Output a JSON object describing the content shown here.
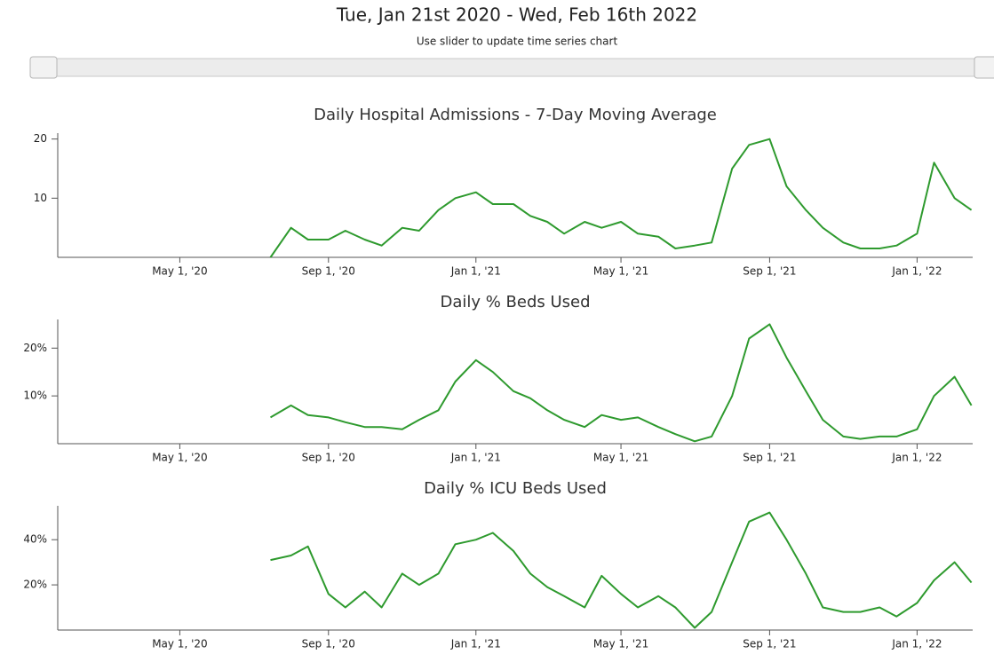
{
  "header": {
    "title": "Tue, Jan 21st 2020 - Wed, Feb 16th 2022",
    "subtitle": "Use slider to update time series chart"
  },
  "chart_data": [
    {
      "type": "line",
      "title": "Daily Hospital Admissions - 7-Day Moving Average",
      "color": "#2e9a2e",
      "x": [
        "2020-07-15",
        "2020-08-01",
        "2020-08-15",
        "2020-09-01",
        "2020-09-15",
        "2020-10-01",
        "2020-10-15",
        "2020-11-01",
        "2020-11-15",
        "2020-12-01",
        "2020-12-15",
        "2021-01-01",
        "2021-01-15",
        "2021-02-01",
        "2021-02-15",
        "2021-03-01",
        "2021-03-15",
        "2021-04-01",
        "2021-04-15",
        "2021-05-01",
        "2021-05-15",
        "2021-06-01",
        "2021-06-15",
        "2021-07-01",
        "2021-07-15",
        "2021-08-01",
        "2021-08-15",
        "2021-09-01",
        "2021-09-15",
        "2021-10-01",
        "2021-10-15",
        "2021-11-01",
        "2021-11-15",
        "2021-12-01",
        "2021-12-15",
        "2022-01-01",
        "2022-01-15",
        "2022-02-01",
        "2022-02-15"
      ],
      "values": [
        0,
        5,
        3,
        3,
        4.5,
        3,
        2,
        5,
        4.5,
        8,
        10,
        11,
        9,
        9,
        7,
        6,
        4,
        6,
        5,
        6,
        4,
        3.5,
        1.5,
        2,
        2.5,
        15,
        19,
        20,
        12,
        8,
        5,
        2.5,
        1.5,
        1.5,
        2,
        4,
        16,
        10,
        8
      ],
      "xlim": [
        "2020-01-21",
        "2022-02-16"
      ],
      "xticks": [
        {
          "value": "2020-05-01",
          "label": "May 1, '20"
        },
        {
          "value": "2020-09-01",
          "label": "Sep 1, '20"
        },
        {
          "value": "2021-01-01",
          "label": "Jan 1, '21"
        },
        {
          "value": "2021-05-01",
          "label": "May 1, '21"
        },
        {
          "value": "2021-09-01",
          "label": "Sep 1, '21"
        },
        {
          "value": "2022-01-01",
          "label": "Jan 1, '22"
        }
      ],
      "ylim": [
        0,
        21
      ],
      "yticks": [
        10,
        20
      ]
    },
    {
      "type": "line",
      "title": "Daily % Beds Used",
      "color": "#2e9a2e",
      "x": [
        "2020-07-15",
        "2020-08-01",
        "2020-08-15",
        "2020-09-01",
        "2020-09-15",
        "2020-10-01",
        "2020-10-15",
        "2020-11-01",
        "2020-11-15",
        "2020-12-01",
        "2020-12-15",
        "2021-01-01",
        "2021-01-15",
        "2021-02-01",
        "2021-02-15",
        "2021-03-01",
        "2021-03-15",
        "2021-04-01",
        "2021-04-15",
        "2021-05-01",
        "2021-05-15",
        "2021-06-01",
        "2021-06-15",
        "2021-07-01",
        "2021-07-15",
        "2021-08-01",
        "2021-08-15",
        "2021-09-01",
        "2021-09-15",
        "2021-10-01",
        "2021-10-15",
        "2021-11-01",
        "2021-11-15",
        "2021-12-01",
        "2021-12-15",
        "2022-01-01",
        "2022-01-15",
        "2022-02-01",
        "2022-02-15"
      ],
      "values": [
        5.5,
        8,
        6,
        5.5,
        4.5,
        3.5,
        3.5,
        3,
        5,
        7,
        13,
        17.5,
        15,
        11,
        9.5,
        7,
        5,
        3.5,
        6,
        5,
        5.5,
        3.5,
        2,
        0.5,
        1.5,
        10,
        22,
        25,
        18,
        11,
        5,
        1.5,
        1,
        1.5,
        1.5,
        3,
        10,
        14,
        8
      ],
      "xlim": [
        "2020-01-21",
        "2022-02-16"
      ],
      "xticks": [
        {
          "value": "2020-05-01",
          "label": "May 1, '20"
        },
        {
          "value": "2020-09-01",
          "label": "Sep 1, '20"
        },
        {
          "value": "2021-01-01",
          "label": "Jan 1, '21"
        },
        {
          "value": "2021-05-01",
          "label": "May 1, '21"
        },
        {
          "value": "2021-09-01",
          "label": "Sep 1, '21"
        },
        {
          "value": "2022-01-01",
          "label": "Jan 1, '22"
        }
      ],
      "ylim": [
        0,
        26
      ],
      "yticks": [
        {
          "value": 10,
          "label": "10%"
        },
        {
          "value": 20,
          "label": "20%"
        }
      ]
    },
    {
      "type": "line",
      "title": "Daily % ICU Beds Used",
      "color": "#2e9a2e",
      "x": [
        "2020-07-15",
        "2020-08-01",
        "2020-08-15",
        "2020-09-01",
        "2020-09-15",
        "2020-10-01",
        "2020-10-15",
        "2020-11-01",
        "2020-11-15",
        "2020-12-01",
        "2020-12-15",
        "2021-01-01",
        "2021-01-15",
        "2021-02-01",
        "2021-02-15",
        "2021-03-01",
        "2021-03-15",
        "2021-04-01",
        "2021-04-15",
        "2021-05-01",
        "2021-05-15",
        "2021-06-01",
        "2021-06-15",
        "2021-07-01",
        "2021-07-15",
        "2021-08-01",
        "2021-08-15",
        "2021-09-01",
        "2021-09-15",
        "2021-10-01",
        "2021-10-15",
        "2021-11-01",
        "2021-11-15",
        "2021-12-01",
        "2021-12-15",
        "2022-01-01",
        "2022-01-15",
        "2022-02-01",
        "2022-02-15"
      ],
      "values": [
        31,
        33,
        37,
        16,
        10,
        17,
        10,
        25,
        20,
        25,
        38,
        40,
        43,
        35,
        25,
        19,
        15,
        10,
        24,
        16,
        10,
        15,
        10,
        1,
        8,
        30,
        48,
        52,
        40,
        25,
        10,
        8,
        8,
        10,
        6,
        12,
        22,
        30,
        21
      ],
      "xlim": [
        "2020-01-21",
        "2022-02-16"
      ],
      "xticks": [
        {
          "value": "2020-05-01",
          "label": "May 1, '20"
        },
        {
          "value": "2020-09-01",
          "label": "Sep 1, '20"
        },
        {
          "value": "2021-01-01",
          "label": "Jan 1, '21"
        },
        {
          "value": "2021-05-01",
          "label": "May 1, '21"
        },
        {
          "value": "2021-09-01",
          "label": "Sep 1, '21"
        },
        {
          "value": "2022-01-01",
          "label": "Jan 1, '22"
        }
      ],
      "ylim": [
        0,
        55
      ],
      "yticks": [
        {
          "value": 20,
          "label": "20%"
        },
        {
          "value": 40,
          "label": "40%"
        }
      ]
    }
  ]
}
